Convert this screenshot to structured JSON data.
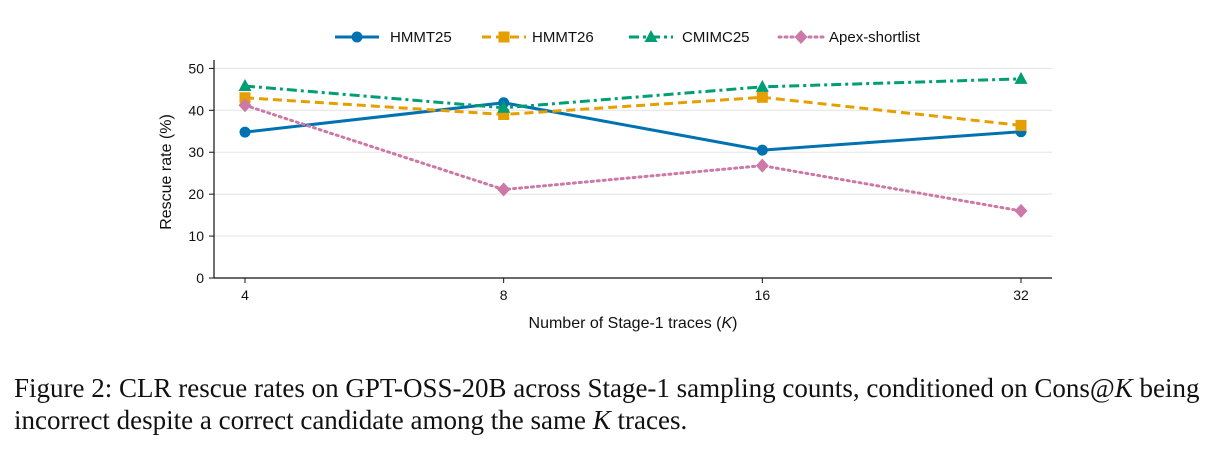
{
  "chart_data": {
    "type": "line",
    "title": "",
    "xlabel_prefix": "Number of Stage-1 traces (",
    "xlabel_var": "K",
    "xlabel_suffix": ")",
    "ylabel": "Rescue rate (%)",
    "x": [
      "4",
      "8",
      "16",
      "32"
    ],
    "ylim": [
      0,
      52
    ],
    "yticks": [
      0,
      10,
      20,
      30,
      40,
      50
    ],
    "grid": "horizontal",
    "legend_position": "top-center",
    "series": [
      {
        "name": "HMMT25",
        "values": [
          34.8,
          41.8,
          30.5,
          34.9
        ],
        "color": "#0072B2",
        "marker": "circle",
        "dash": "solid"
      },
      {
        "name": "HMMT26",
        "values": [
          43.0,
          39.0,
          43.1,
          36.4
        ],
        "color": "#E69F00",
        "marker": "square",
        "dash": "dashed"
      },
      {
        "name": "CMIMC25",
        "values": [
          45.8,
          40.6,
          45.6,
          47.5
        ],
        "color": "#009E73",
        "marker": "triangle",
        "dash": "dashdot"
      },
      {
        "name": "Apex-shortlist",
        "values": [
          41.2,
          21.1,
          26.8,
          16.0
        ],
        "color": "#CC79A7",
        "marker": "diamond",
        "dash": "dotted"
      }
    ]
  },
  "caption": {
    "part1": "Figure 2: CLR rescue rates on GPT-OSS-20B across Stage-1 sampling counts, conditioned on Cons@",
    "var1": "K",
    "part2": " being incorrect despite a correct candidate among the same ",
    "var2": "K",
    "part3": " traces."
  }
}
